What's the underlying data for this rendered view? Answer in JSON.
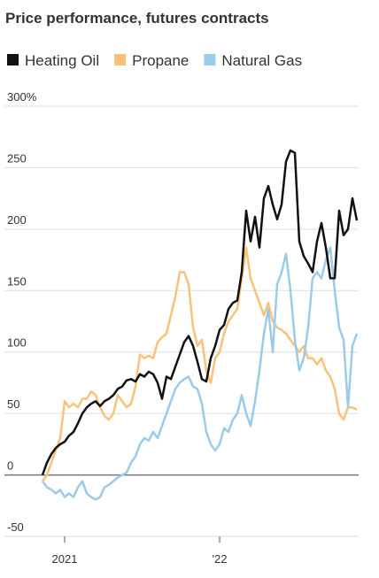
{
  "chart_data": {
    "type": "line",
    "title": "Price performance, futures contracts",
    "categories": [
      null,
      null,
      null,
      null,
      null,
      "2021",
      null,
      null,
      null,
      null,
      null,
      null,
      null,
      null,
      null,
      null,
      null,
      null,
      null,
      null,
      null,
      null,
      null,
      null,
      null,
      null,
      null,
      null,
      null,
      null,
      null,
      null,
      null,
      null,
      null,
      null,
      null,
      null,
      null,
      null,
      "'22",
      null,
      null,
      null,
      null,
      null,
      null,
      null,
      null,
      null,
      null,
      null,
      null,
      null,
      null,
      null,
      null,
      null,
      null,
      null,
      null,
      null,
      null,
      null,
      null,
      null,
      null,
      null,
      null,
      null,
      null,
      null
    ],
    "series": [
      {
        "name": "Heating Oil",
        "color": "#111111",
        "values": [
          0,
          10,
          17,
          22,
          25,
          27,
          32,
          35,
          42,
          50,
          55,
          58,
          60,
          56,
          60,
          62,
          65,
          70,
          72,
          77,
          78,
          76,
          82,
          80,
          84,
          82,
          75,
          62,
          80,
          78,
          88,
          98,
          108,
          113,
          105,
          92,
          78,
          76,
          95,
          105,
          118,
          122,
          135,
          140,
          142,
          165,
          215,
          190,
          210,
          185,
          225,
          235,
          220,
          208,
          220,
          255,
          264,
          262,
          190,
          178,
          172,
          165,
          190,
          205,
          185,
          160,
          160,
          215,
          195,
          200,
          225,
          207
        ]
      },
      {
        "name": "Propane",
        "color": "#f9c27a",
        "values": [
          -5,
          0,
          10,
          20,
          30,
          60,
          55,
          58,
          55,
          62,
          62,
          68,
          65,
          55,
          48,
          45,
          50,
          65,
          60,
          55,
          58,
          72,
          98,
          95,
          97,
          95,
          108,
          112,
          115,
          130,
          145,
          165,
          165,
          155,
          120,
          105,
          110,
          85,
          75,
          95,
          100,
          115,
          125,
          130,
          135,
          160,
          185,
          160,
          150,
          140,
          130,
          140,
          125,
          120,
          118,
          115,
          110,
          105,
          100,
          105,
          95,
          95,
          90,
          95,
          85,
          80,
          70,
          50,
          45,
          55,
          55,
          53
        ]
      },
      {
        "name": "Natural Gas",
        "color": "#9ccbe9",
        "values": [
          -5,
          -10,
          -12,
          -15,
          -12,
          -18,
          -15,
          -18,
          -10,
          -5,
          -15,
          -18,
          -20,
          -18,
          -10,
          -8,
          -5,
          -2,
          0,
          2,
          10,
          15,
          25,
          30,
          28,
          35,
          30,
          40,
          50,
          60,
          70,
          75,
          78,
          80,
          72,
          70,
          58,
          35,
          25,
          20,
          25,
          38,
          35,
          45,
          50,
          65,
          50,
          40,
          60,
          85,
          115,
          135,
          100,
          155,
          165,
          180,
          150,
          110,
          85,
          95,
          120,
          160,
          165,
          160,
          175,
          185,
          150,
          120,
          110,
          55,
          105,
          115
        ]
      }
    ],
    "ylim": [
      -55,
      305
    ],
    "yticks": [
      -50,
      0,
      50,
      100,
      150,
      200,
      250,
      {
        "value": 300,
        "label": "300%"
      }
    ],
    "grid": true
  }
}
